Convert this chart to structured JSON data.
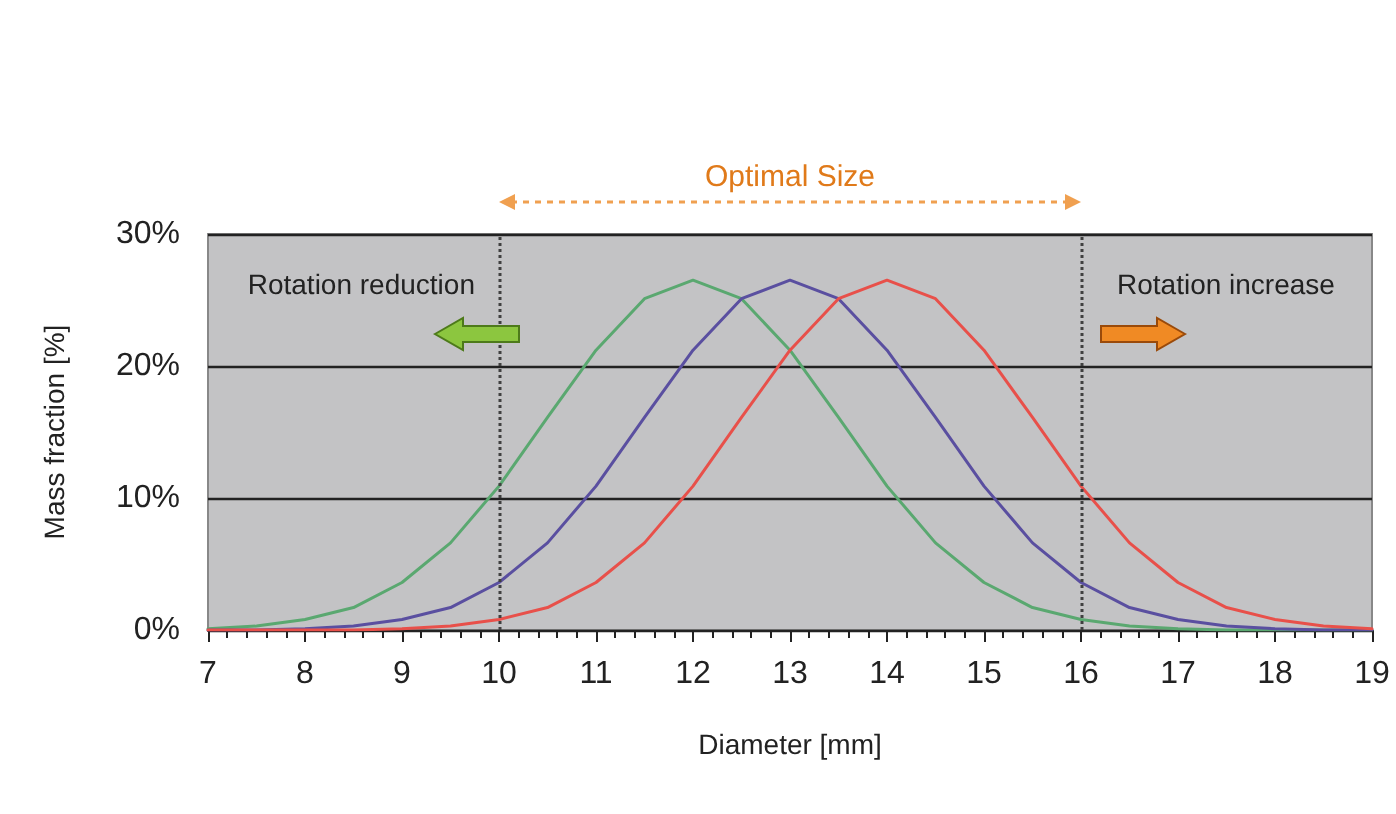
{
  "chart_data": {
    "type": "line",
    "xlabel": "Diameter [mm]",
    "ylabel": "Mass fraction [%]",
    "x": [
      7,
      7.5,
      8,
      8.5,
      9,
      9.5,
      10,
      10.5,
      11,
      11.5,
      12,
      12.5,
      13,
      13.5,
      14,
      14.5,
      15,
      15.5,
      16,
      16.5,
      17,
      17.5,
      18,
      18.5,
      19
    ],
    "series": [
      {
        "color": "#5aa870",
        "values": [
          0.1,
          0.3,
          0.8,
          1.7,
          3.6,
          6.6,
          10.9,
          16.1,
          21.2,
          25.1,
          26.5,
          25.1,
          21.2,
          16.1,
          10.9,
          6.6,
          3.6,
          1.7,
          0.8,
          0.3,
          0.1,
          0,
          0,
          0,
          0
        ]
      },
      {
        "color": "#5a4fa0",
        "values": [
          0,
          0,
          0.1,
          0.3,
          0.8,
          1.7,
          3.6,
          6.6,
          10.9,
          16.1,
          21.2,
          25.1,
          26.5,
          25.1,
          21.2,
          16.1,
          10.9,
          6.6,
          3.6,
          1.7,
          0.8,
          0.3,
          0.1,
          0,
          0
        ]
      },
      {
        "color": "#e8504a",
        "values": [
          0,
          0,
          0,
          0,
          0.1,
          0.3,
          0.8,
          1.7,
          3.6,
          6.6,
          10.9,
          16.1,
          21.2,
          25.1,
          26.5,
          25.1,
          21.2,
          16.1,
          10.9,
          6.6,
          3.6,
          1.7,
          0.8,
          0.3,
          0.1
        ]
      }
    ],
    "xlim": [
      7,
      19
    ],
    "xticks": [
      7,
      8,
      9,
      10,
      11,
      12,
      13,
      14,
      15,
      16,
      17,
      18,
      19
    ],
    "ylim": [
      0,
      30
    ],
    "yticks": [
      {
        "value": 0,
        "label": "0%"
      },
      {
        "value": 10,
        "label": "10%"
      },
      {
        "value": 20,
        "label": "20%"
      },
      {
        "value": 30,
        "label": "30%"
      }
    ],
    "grid": "y",
    "marker": "none",
    "line_style": "solid",
    "ref_lines": [
      {
        "axis": "x",
        "value": 10,
        "line_style": "dotted",
        "color": "#404040"
      },
      {
        "axis": "x",
        "value": 16,
        "line_style": "dotted",
        "color": "#404040"
      }
    ],
    "annotations": [
      "Optimal Size",
      "Rotation reduction",
      "Rotation increase"
    ]
  }
}
